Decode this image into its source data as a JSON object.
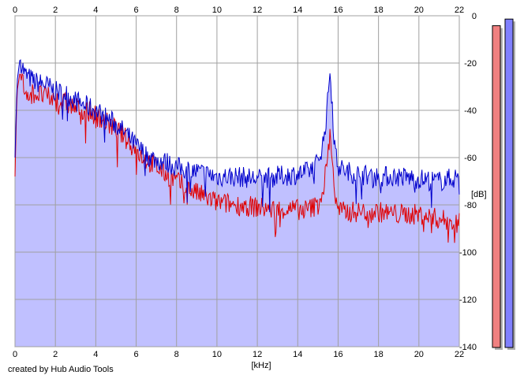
{
  "footer": {
    "credit": "created by Hub Audio Tools"
  },
  "chart_data": {
    "type": "area",
    "xlabel": "[kHz]",
    "ylabel": "[dB]",
    "xlim": [
      0,
      22
    ],
    "ylim": [
      -140,
      0
    ],
    "x_ticks": [
      0,
      2,
      4,
      6,
      8,
      10,
      12,
      14,
      16,
      18,
      20,
      22
    ],
    "y_ticks": [
      0,
      -20,
      -40,
      -60,
      -80,
      -100,
      -120,
      -140
    ],
    "grid": true,
    "fill_color": "#c0c0ff",
    "series": [
      {
        "color": "#0000cc",
        "x": [
          0,
          0.1,
          0.25,
          0.5,
          1,
          1.5,
          2,
          2.5,
          3,
          3.5,
          4,
          4.5,
          5,
          5.5,
          6,
          6.5,
          7,
          7.5,
          8,
          8.5,
          9,
          9.5,
          10,
          11,
          12,
          13,
          14,
          14.5,
          15,
          15.3,
          15.5,
          15.6,
          15.7,
          15.8,
          15.9,
          16,
          16.2,
          16.5,
          17,
          18,
          19,
          20,
          21,
          21.5,
          22
        ],
        "y": [
          -60,
          -28,
          -18,
          -25,
          -28,
          -29,
          -32,
          -33,
          -36,
          -38,
          -40,
          -43,
          -46,
          -50,
          -55,
          -59,
          -61,
          -62,
          -64,
          -65,
          -66,
          -67,
          -68,
          -68,
          -69,
          -68,
          -67,
          -66,
          -62,
          -52,
          -35,
          -22,
          -35,
          -52,
          -60,
          -63,
          -65,
          -66,
          -67,
          -68,
          -68,
          -69,
          -70,
          -69,
          -68
        ]
      },
      {
        "color": "#e00000",
        "x": [
          0,
          0.1,
          0.25,
          0.5,
          1,
          1.5,
          2,
          2.5,
          3,
          3.5,
          4,
          4.5,
          5,
          5.5,
          6,
          6.5,
          7,
          7.5,
          8,
          8.5,
          9,
          9.5,
          10,
          11,
          12,
          13,
          14,
          14.5,
          15,
          15.3,
          15.5,
          15.6,
          15.7,
          15.8,
          15.9,
          16,
          16.2,
          16.5,
          17,
          18,
          19,
          20,
          21,
          21.5,
          22
        ],
        "y": [
          -68,
          -32,
          -24,
          -32,
          -33,
          -34,
          -36,
          -37,
          -39,
          -40,
          -42,
          -45,
          -48,
          -52,
          -57,
          -61,
          -64,
          -67,
          -70,
          -73,
          -75,
          -77,
          -79,
          -80,
          -81,
          -82,
          -82,
          -82,
          -80,
          -72,
          -58,
          -50,
          -58,
          -72,
          -80,
          -82,
          -83,
          -83,
          -83,
          -83,
          -84,
          -84,
          -86,
          -87,
          -88
        ]
      }
    ],
    "meters": [
      {
        "color": "#f08080",
        "level": 0.97
      },
      {
        "color": "#8080ff",
        "level": 0.99
      }
    ]
  }
}
